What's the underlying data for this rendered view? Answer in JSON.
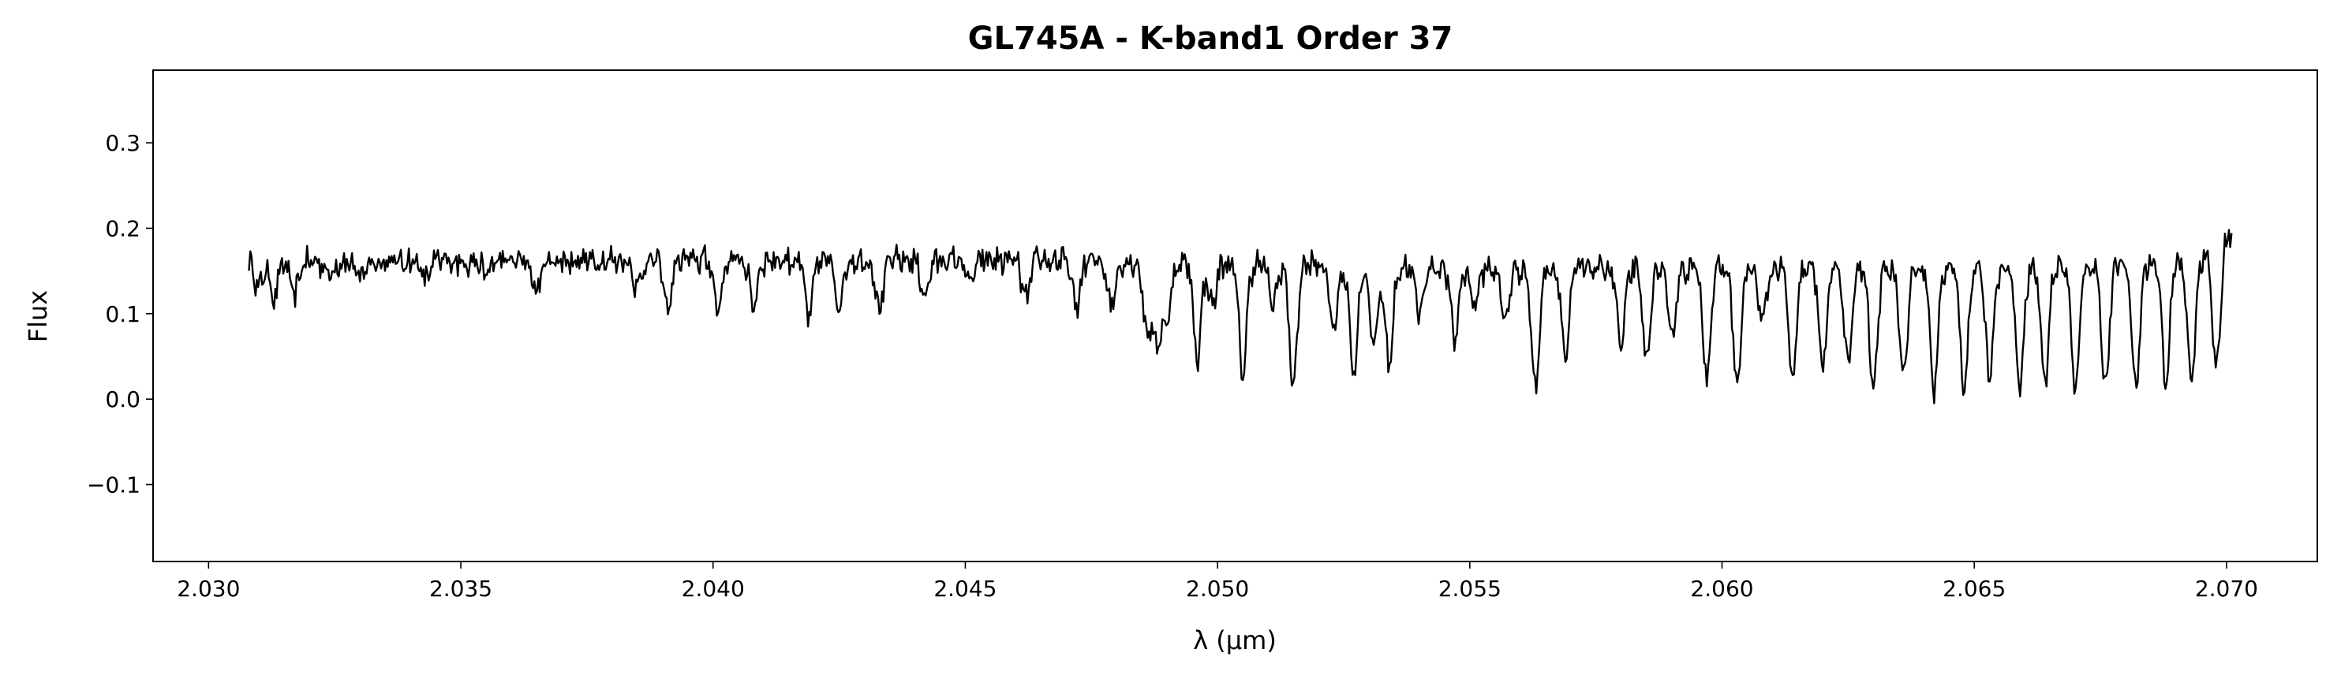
{
  "chart_data": {
    "type": "line",
    "title": "GL745A - K-band1 Order 37",
    "xlabel": "λ (μm)",
    "ylabel": "Flux",
    "xlim": [
      2.0289,
      2.0718
    ],
    "ylim": [
      -0.19,
      0.385
    ],
    "xticks": [
      "2.030",
      "2.035",
      "2.040",
      "2.045",
      "2.050",
      "2.055",
      "2.060",
      "2.065",
      "2.070"
    ],
    "xtick_values": [
      2.03,
      2.035,
      2.04,
      2.045,
      2.05,
      2.055,
      2.06,
      2.065,
      2.07
    ],
    "yticks": [
      "−0.1",
      "0.0",
      "0.1",
      "0.2",
      "0.3"
    ],
    "ytick_values": [
      -0.1,
      0.0,
      0.1,
      0.2,
      0.3
    ],
    "grid": false,
    "legend": "none",
    "series": [
      {
        "color": "#000000",
        "x_start": 2.0308,
        "x_end": 2.0701,
        "continuum": [
          [
            2.0308,
            0.16
          ],
          [
            2.04,
            0.163
          ],
          [
            2.047,
            0.162
          ],
          [
            2.055,
            0.153
          ],
          [
            2.065,
            0.152
          ],
          [
            2.0685,
            0.158
          ],
          [
            2.0695,
            0.165
          ],
          [
            2.0701,
            0.197
          ]
        ],
        "absorption_lines": [
          [
            2.031,
            0.13
          ],
          [
            2.0313,
            0.12
          ],
          [
            2.0317,
            0.12
          ],
          [
            2.0324,
            0.145
          ],
          [
            2.033,
            0.14
          ],
          [
            2.0343,
            0.14
          ],
          [
            2.0355,
            0.145
          ],
          [
            2.0365,
            0.125
          ],
          [
            2.0385,
            0.13
          ],
          [
            2.0391,
            0.105
          ],
          [
            2.0401,
            0.105
          ],
          [
            2.0408,
            0.11
          ],
          [
            2.0419,
            0.095
          ],
          [
            2.0425,
            0.11
          ],
          [
            2.0433,
            0.105
          ],
          [
            2.0442,
            0.12
          ],
          [
            2.0451,
            0.135
          ],
          [
            2.0462,
            0.115
          ],
          [
            2.0472,
            0.105
          ],
          [
            2.0479,
            0.11
          ],
          [
            2.0486,
            0.08
          ],
          [
            2.0488,
            0.06
          ],
          [
            2.049,
            0.09
          ],
          [
            2.0496,
            0.05
          ],
          [
            2.0499,
            0.11
          ],
          [
            2.0505,
            0.03
          ],
          [
            2.0511,
            0.11
          ],
          [
            2.0515,
            0.015
          ],
          [
            2.0523,
            0.08
          ],
          [
            2.0527,
            0.03
          ],
          [
            2.0531,
            0.06
          ],
          [
            2.0534,
            0.04
          ],
          [
            2.054,
            0.1
          ],
          [
            2.0547,
            0.07
          ],
          [
            2.0551,
            0.11
          ],
          [
            2.0557,
            0.09
          ],
          [
            2.0563,
            0.01
          ],
          [
            2.0569,
            0.05
          ],
          [
            2.058,
            0.06
          ],
          [
            2.0585,
            0.045
          ],
          [
            2.059,
            0.07
          ],
          [
            2.0597,
            0.03
          ],
          [
            2.0603,
            0.015
          ],
          [
            2.0608,
            0.09
          ],
          [
            2.0614,
            0.02
          ],
          [
            2.062,
            0.04
          ],
          [
            2.0625,
            0.04
          ],
          [
            2.063,
            0.01
          ],
          [
            2.0636,
            0.03
          ],
          [
            2.0642,
            0.01
          ],
          [
            2.0648,
            0.015
          ],
          [
            2.0653,
            0.03
          ],
          [
            2.0659,
            0.015
          ],
          [
            2.0664,
            0.02
          ],
          [
            2.067,
            0.01
          ],
          [
            2.0676,
            0.015
          ],
          [
            2.0682,
            0.015
          ],
          [
            2.0688,
            0.015
          ],
          [
            2.0693,
            0.02
          ],
          [
            2.0698,
            0.03
          ]
        ]
      }
    ]
  }
}
